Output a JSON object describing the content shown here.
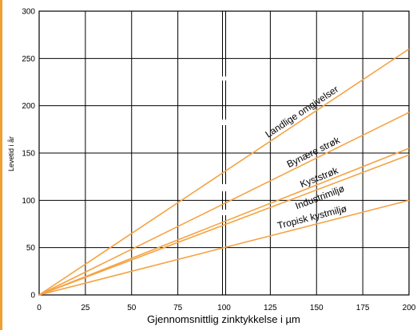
{
  "chart_data": {
    "type": "line",
    "xlabel": "Gjennomsnittlig zinktykkelse i µm",
    "ylabel": "Levetid i år",
    "xlim": [
      0,
      200
    ],
    "ylim": [
      0,
      300
    ],
    "x_ticks": [
      0,
      25,
      50,
      75,
      100,
      125,
      150,
      175,
      200
    ],
    "y_ticks": [
      0,
      50,
      100,
      150,
      200,
      250,
      300
    ],
    "grid": true,
    "line_color": "#f5a343",
    "accent_color": "#f0a030",
    "series": [
      {
        "name": "Landlige omgivelser",
        "x": [
          0,
          200
        ],
        "y": [
          0,
          260
        ]
      },
      {
        "name": "Bynære strøk",
        "x": [
          0,
          200
        ],
        "y": [
          0,
          193
        ]
      },
      {
        "name": "Kyststrøk",
        "x": [
          0,
          200
        ],
        "y": [
          0,
          155
        ]
      },
      {
        "name": "Industrimiljø",
        "x": [
          0,
          200
        ],
        "y": [
          0,
          148
        ]
      },
      {
        "name": "Tropisk kystmiljø",
        "x": [
          0,
          200
        ],
        "y": [
          0,
          100
        ]
      }
    ]
  }
}
